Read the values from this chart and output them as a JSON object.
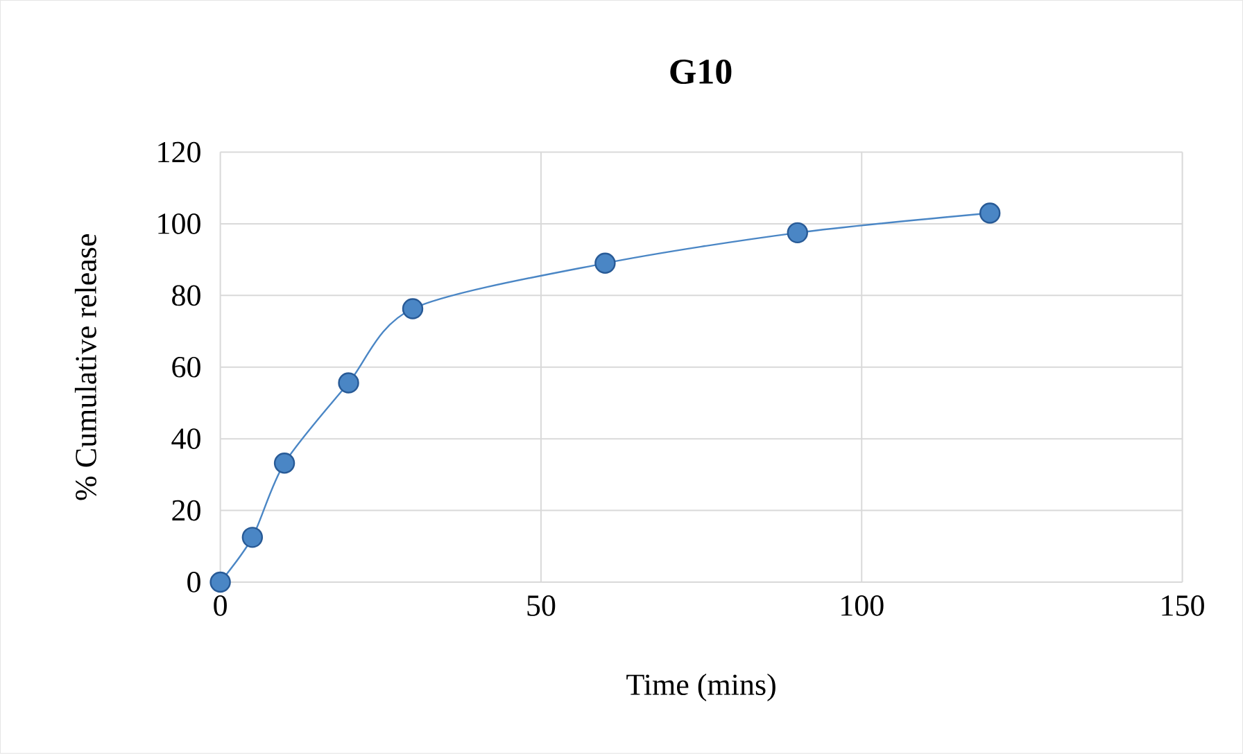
{
  "chart_data": {
    "type": "line",
    "title": "G10",
    "xlabel": "Time (mins)",
    "ylabel": "% Cumulative release",
    "x": [
      0,
      5,
      10,
      20,
      30,
      60,
      90,
      120
    ],
    "series": [
      {
        "color": "#4a86c5",
        "values": [
          0,
          12.5,
          33.2,
          55.6,
          76.3,
          89,
          97.5,
          103
        ]
      }
    ],
    "xlim": [
      0,
      150
    ],
    "xticks": [
      0,
      50,
      100,
      150
    ],
    "ylim": [
      0,
      120
    ],
    "yticks": [
      0,
      20,
      40,
      60,
      80,
      100,
      120
    ],
    "grid": true,
    "marker": "circle",
    "line_style": "solid"
  }
}
